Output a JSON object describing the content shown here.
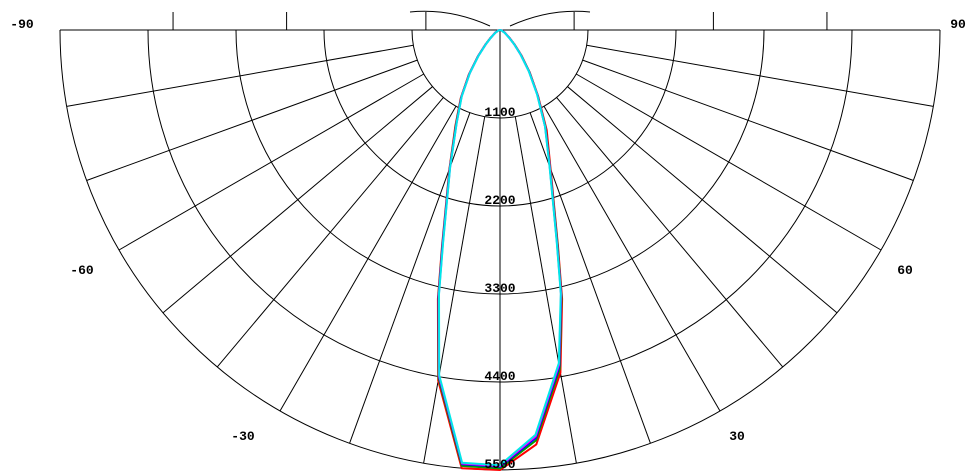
{
  "chart_data": {
    "type": "polar",
    "title": "",
    "angle_range": [
      -90,
      90
    ],
    "angle_step": 10,
    "angle_tick_labels": [
      "-90",
      "-60",
      "-30",
      "30",
      "60",
      "90"
    ],
    "angle_tick_values": [
      -90,
      -60,
      -30,
      30,
      60,
      90
    ],
    "radius_range": [
      0,
      5500
    ],
    "radius_ticks": [
      1100,
      2200,
      3300,
      4400,
      5500
    ],
    "radius_tick_labels": [
      "1100",
      "2200",
      "3300",
      "4400",
      "5500"
    ],
    "grid": true,
    "series": [
      {
        "color": "#ff0000",
        "points": [
          [
            0,
            5500
          ],
          [
            5,
            5200
          ],
          [
            10,
            4350
          ],
          [
            13,
            3450
          ],
          [
            15,
            2800
          ],
          [
            20,
            1850
          ],
          [
            25,
            1380
          ],
          [
            30,
            950
          ],
          [
            35,
            650
          ],
          [
            40,
            420
          ],
          [
            45,
            260
          ],
          [
            50,
            160
          ],
          [
            60,
            70
          ],
          [
            70,
            30
          ],
          [
            80,
            10
          ],
          [
            90,
            0
          ],
          [
            -5,
            5500
          ],
          [
            -10,
            4450
          ],
          [
            -13,
            3450
          ],
          [
            -15,
            2800
          ],
          [
            -20,
            1850
          ],
          [
            -25,
            1320
          ],
          [
            -30,
            980
          ],
          [
            -35,
            680
          ],
          [
            -40,
            430
          ],
          [
            -45,
            260
          ],
          [
            -50,
            160
          ],
          [
            -60,
            70
          ],
          [
            -70,
            30
          ],
          [
            -80,
            10
          ],
          [
            -90,
            0
          ]
        ]
      },
      {
        "color": "#00a000",
        "points": [
          [
            0,
            5480
          ],
          [
            5,
            5150
          ],
          [
            10,
            4300
          ],
          [
            13,
            3420
          ],
          [
            15,
            2780
          ],
          [
            20,
            1830
          ],
          [
            25,
            1350
          ],
          [
            30,
            940
          ],
          [
            35,
            640
          ],
          [
            40,
            410
          ],
          [
            45,
            255
          ],
          [
            50,
            155
          ],
          [
            60,
            68
          ],
          [
            70,
            28
          ],
          [
            80,
            10
          ],
          [
            90,
            0
          ],
          [
            -5,
            5470
          ],
          [
            -10,
            4420
          ],
          [
            -13,
            3430
          ],
          [
            -15,
            2780
          ],
          [
            -20,
            1840
          ],
          [
            -25,
            1300
          ],
          [
            -30,
            970
          ],
          [
            -35,
            670
          ],
          [
            -40,
            425
          ],
          [
            -45,
            255
          ],
          [
            -50,
            155
          ],
          [
            -60,
            68
          ],
          [
            -70,
            28
          ],
          [
            -80,
            10
          ],
          [
            -90,
            0
          ]
        ]
      },
      {
        "color": "#0000ff",
        "points": [
          [
            0,
            5460
          ],
          [
            5,
            5120
          ],
          [
            10,
            4270
          ],
          [
            13,
            3400
          ],
          [
            15,
            2760
          ],
          [
            20,
            1820
          ],
          [
            25,
            1340
          ],
          [
            30,
            935
          ],
          [
            35,
            635
          ],
          [
            40,
            405
          ],
          [
            45,
            250
          ],
          [
            50,
            150
          ],
          [
            60,
            66
          ],
          [
            70,
            27
          ],
          [
            80,
            9
          ],
          [
            90,
            0
          ],
          [
            -5,
            5450
          ],
          [
            -10,
            4400
          ],
          [
            -13,
            3410
          ],
          [
            -15,
            2770
          ],
          [
            -20,
            1830
          ],
          [
            -25,
            1290
          ],
          [
            -30,
            965
          ],
          [
            -35,
            665
          ],
          [
            -40,
            420
          ],
          [
            -45,
            252
          ],
          [
            -50,
            152
          ],
          [
            -60,
            66
          ],
          [
            -70,
            27
          ],
          [
            -80,
            9
          ],
          [
            -90,
            0
          ]
        ]
      },
      {
        "color": "#ff00ff",
        "points": [
          [
            0,
            5450
          ],
          [
            5,
            5100
          ],
          [
            10,
            4250
          ],
          [
            13,
            3390
          ],
          [
            15,
            2750
          ],
          [
            20,
            1815
          ],
          [
            25,
            1335
          ],
          [
            30,
            930
          ],
          [
            35,
            630
          ],
          [
            40,
            400
          ],
          [
            45,
            248
          ],
          [
            50,
            148
          ],
          [
            60,
            65
          ],
          [
            70,
            26
          ],
          [
            80,
            9
          ],
          [
            90,
            0
          ],
          [
            -5,
            5440
          ],
          [
            -10,
            4390
          ],
          [
            -13,
            3400
          ],
          [
            -15,
            2760
          ],
          [
            -20,
            1825
          ],
          [
            -25,
            1285
          ],
          [
            -30,
            960
          ],
          [
            -35,
            660
          ],
          [
            -40,
            418
          ],
          [
            -45,
            250
          ],
          [
            -50,
            150
          ],
          [
            -60,
            65
          ],
          [
            -70,
            26
          ],
          [
            -80,
            9
          ],
          [
            -90,
            0
          ]
        ]
      },
      {
        "color": "#00e8e8",
        "points": [
          [
            0,
            5440
          ],
          [
            5,
            5080
          ],
          [
            10,
            4230
          ],
          [
            13,
            3380
          ],
          [
            15,
            2740
          ],
          [
            20,
            1810
          ],
          [
            25,
            1330
          ],
          [
            30,
            925
          ],
          [
            35,
            625
          ],
          [
            40,
            398
          ],
          [
            45,
            246
          ],
          [
            50,
            146
          ],
          [
            60,
            64
          ],
          [
            70,
            25
          ],
          [
            80,
            9
          ],
          [
            90,
            0
          ],
          [
            -5,
            5430
          ],
          [
            -10,
            4380
          ],
          [
            -13,
            3390
          ],
          [
            -15,
            2750
          ],
          [
            -20,
            1820
          ],
          [
            -25,
            1280
          ],
          [
            -30,
            955
          ],
          [
            -35,
            655
          ],
          [
            -40,
            415
          ],
          [
            -45,
            248
          ],
          [
            -50,
            148
          ],
          [
            -60,
            64
          ],
          [
            -70,
            25
          ],
          [
            -80,
            9
          ],
          [
            -90,
            0
          ]
        ]
      }
    ]
  }
}
